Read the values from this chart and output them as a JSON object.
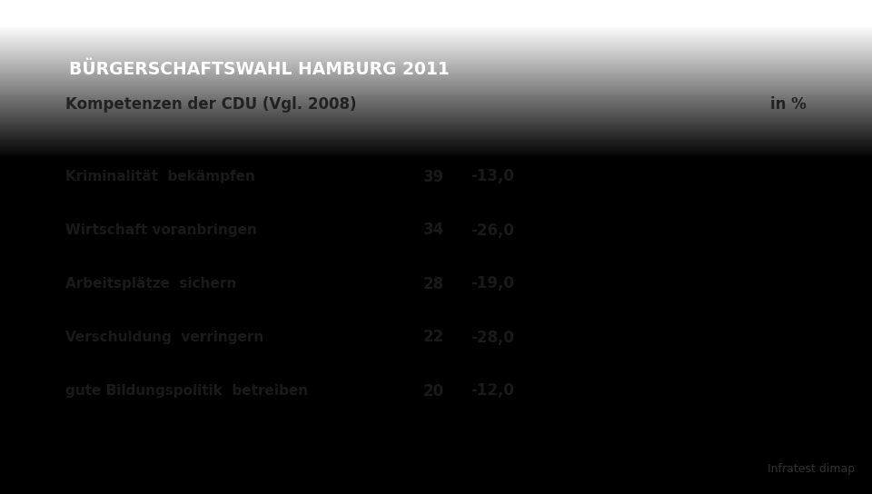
{
  "title": "BÜRGERSCHAFTSWAHL HAMBURG 2011",
  "subtitle": "Kompetenzen der CDU (Vgl. 2008)",
  "unit_label": "in %",
  "source": "Infratest dimap",
  "categories": [
    "Kriminalität  bekämpfen",
    "Wirtschaft voranbringen",
    "Arbeitsplätze  sichern",
    "Verschuldung  verringern",
    "gute Bildungspolitik  betreiben"
  ],
  "values": [
    39,
    34,
    28,
    22,
    20
  ],
  "changes": [
    "-13,0",
    "-26,0",
    "-19,0",
    "-28,0",
    "-12,0"
  ],
  "bar_color": "#111111",
  "title_bg_color": "#1b3c6e",
  "title_text_color": "#ffffff",
  "subtitle_bg_color": "#f5f5f5",
  "subtitle_text_color": "#222222",
  "label_bg_color": "#f0f0f0",
  "bg_color_top": "#e8e8e6",
  "bg_color_bottom": "#b8bab8",
  "text_color": "#1a1a1a"
}
